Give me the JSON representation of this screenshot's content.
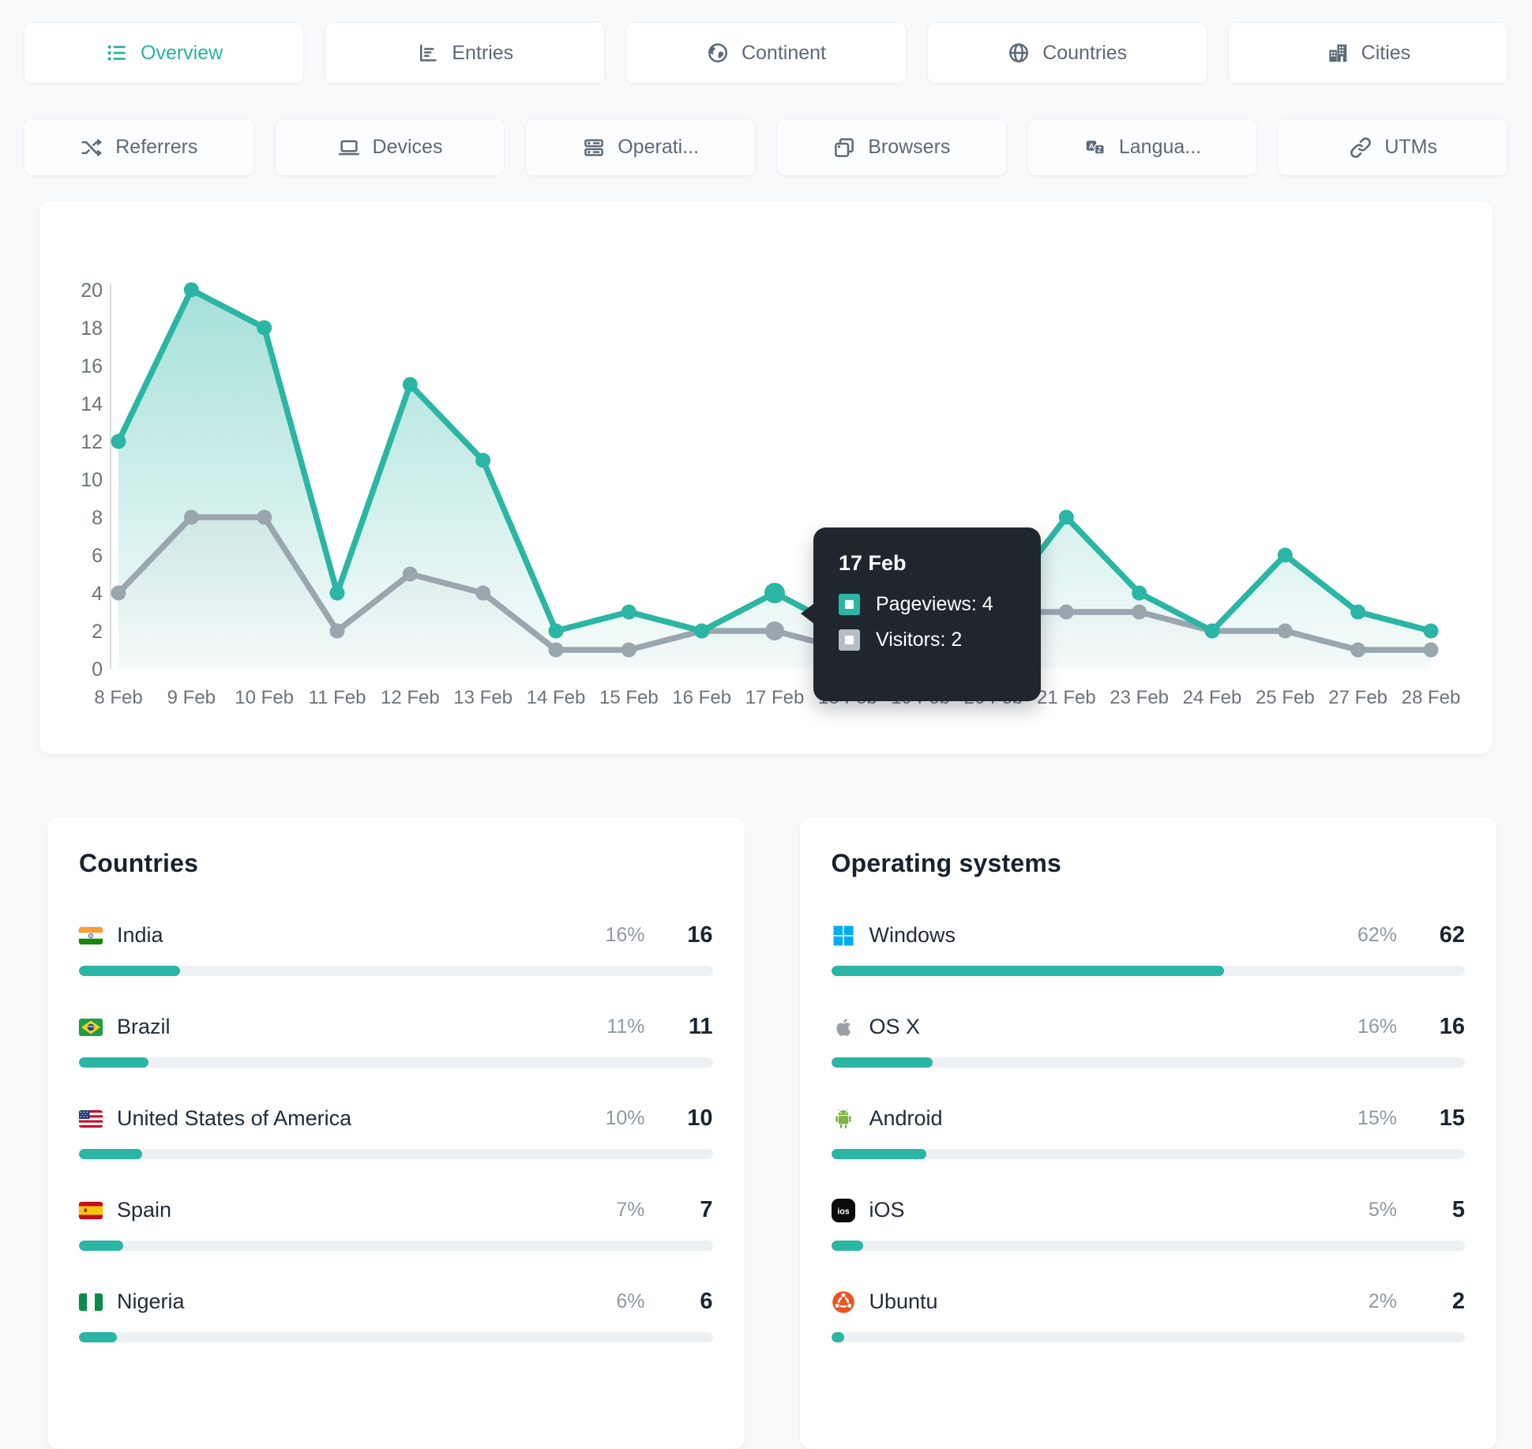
{
  "colors": {
    "accent": "#2bb5a4",
    "visitors_line": "#9aa6ae",
    "tooltip_bg": "#20262e",
    "page_bg": "#f7f9fa",
    "windows_blue": "#00adef",
    "bar_track": "#eef1f3"
  },
  "tabs": {
    "row1": [
      {
        "label": "Overview",
        "icon": "list-icon",
        "active": true
      },
      {
        "label": "Entries",
        "icon": "bar-chart-icon",
        "active": false
      },
      {
        "label": "Continent",
        "icon": "earth-icon",
        "active": false
      },
      {
        "label": "Countries",
        "icon": "globe-icon",
        "active": false
      },
      {
        "label": "Cities",
        "icon": "buildings-icon",
        "active": false
      }
    ],
    "row2": [
      {
        "label": "Referrers",
        "icon": "shuffle-icon",
        "active": false
      },
      {
        "label": "Devices",
        "icon": "laptop-icon",
        "active": false
      },
      {
        "label": "Operati...",
        "icon": "server-icon",
        "active": false
      },
      {
        "label": "Browsers",
        "icon": "browser-icon",
        "active": false
      },
      {
        "label": "Langua...",
        "icon": "translate-icon",
        "active": false
      },
      {
        "label": "UTMs",
        "icon": "link-icon",
        "active": false
      }
    ]
  },
  "chart_data": {
    "type": "line",
    "title": "",
    "categories": [
      "8 Feb",
      "9 Feb",
      "10 Feb",
      "11 Feb",
      "12 Feb",
      "13 Feb",
      "14 Feb",
      "15 Feb",
      "16 Feb",
      "17 Feb",
      "18 Feb",
      "19 Feb",
      "20 Feb",
      "21 Feb",
      "23 Feb",
      "24 Feb",
      "25 Feb",
      "27 Feb",
      "28 Feb"
    ],
    "series": [
      {
        "name": "Pageviews",
        "color": "#2bb5a4",
        "values": [
          12,
          20,
          18,
          4,
          15,
          11,
          2,
          3,
          2,
          4,
          2,
          2,
          3,
          8,
          4,
          2,
          6,
          3,
          2
        ]
      },
      {
        "name": "Visitors",
        "color": "#9aa6ae",
        "values": [
          4,
          8,
          8,
          2,
          5,
          4,
          1,
          1,
          2,
          2,
          1,
          1,
          3,
          3,
          3,
          2,
          2,
          1,
          1
        ]
      }
    ],
    "ylim": [
      0,
      20
    ],
    "ytick_step": 2,
    "xlabel": "",
    "ylabel": "",
    "grid": "off",
    "legend": "none"
  },
  "tooltip": {
    "title": "17 Feb",
    "anchor_index": 9,
    "rows": [
      {
        "swatch_color": "#2bb5a4",
        "text": "Pageviews: 4"
      },
      {
        "swatch_color": "#b7bdc4",
        "text": "Visitors: 2"
      }
    ]
  },
  "panels": [
    {
      "title": "Countries",
      "rows": [
        {
          "icon": "flag-india",
          "label": "India",
          "percent": "16%",
          "value": "16"
        },
        {
          "icon": "flag-brazil",
          "label": "Brazil",
          "percent": "11%",
          "value": "11"
        },
        {
          "icon": "flag-usa",
          "label": "United States of America",
          "percent": "10%",
          "value": "10"
        },
        {
          "icon": "flag-spain",
          "label": "Spain",
          "percent": "7%",
          "value": "7"
        },
        {
          "icon": "flag-nigeria",
          "label": "Nigeria",
          "percent": "6%",
          "value": "6"
        }
      ]
    },
    {
      "title": "Operating systems",
      "rows": [
        {
          "icon": "windows-logo",
          "label": "Windows",
          "percent": "62%",
          "value": "62"
        },
        {
          "icon": "apple-logo",
          "label": "OS X",
          "percent": "16%",
          "value": "16"
        },
        {
          "icon": "android-logo",
          "label": "Android",
          "percent": "15%",
          "value": "15"
        },
        {
          "icon": "ios-logo",
          "label": "iOS",
          "percent": "5%",
          "value": "5"
        },
        {
          "icon": "ubuntu-logo",
          "label": "Ubuntu",
          "percent": "2%",
          "value": "2"
        }
      ]
    }
  ]
}
